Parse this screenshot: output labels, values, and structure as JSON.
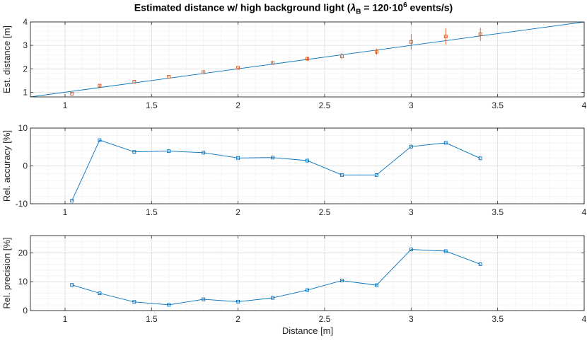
{
  "figure": {
    "title_text_before": "Estimated distance w/ high background light (",
    "title_symbol": "λ",
    "title_symbol_sub": "B",
    "title_eq": " = 120·10",
    "title_sup": "6",
    "title_text_after": " events/s)",
    "xlabel": "Distance [m]"
  },
  "colors": {
    "axis": "#262626",
    "grid_major": "#dcdcdc",
    "grid_minor": "#efefef",
    "line_blue": "#0072BD",
    "marker_orange": "#D95319"
  },
  "chart_data": [
    {
      "type": "scatter",
      "name": "estimated-distance",
      "ylabel": "Est. distance [m]",
      "xlim": [
        0.8,
        4
      ],
      "ylim": [
        0.8,
        4
      ],
      "xticks": [
        1,
        1.5,
        2,
        2.5,
        3,
        3.5,
        4
      ],
      "xtick_labels": [
        "1",
        "1.5",
        "2",
        "2.5",
        "3",
        "3.5",
        "4"
      ],
      "yticks": [
        1,
        2,
        3,
        4
      ],
      "ytick_labels": [
        "1",
        "2",
        "3",
        "4"
      ],
      "grid": true,
      "reference_line": {
        "x": [
          0.8,
          4
        ],
        "y": [
          0.8,
          4
        ]
      },
      "series": [
        {
          "x": [
            1.04,
            1.2,
            1.4,
            1.6,
            1.8,
            2.0,
            2.2,
            2.4,
            2.6,
            2.8,
            3.0,
            3.2,
            3.4
          ],
          "y": [
            0.94,
            1.28,
            1.45,
            1.66,
            1.86,
            2.04,
            2.25,
            2.43,
            2.54,
            2.73,
            3.15,
            3.38,
            3.47
          ],
          "err": [
            0.05,
            0.08,
            0.04,
            0.03,
            0.07,
            0.06,
            0.1,
            0.17,
            0.26,
            0.24,
            0.66,
            0.7,
            0.56
          ]
        }
      ]
    },
    {
      "type": "line",
      "name": "relative-accuracy",
      "ylabel": "Rel. accuracy [%]",
      "xlim": [
        0.8,
        4
      ],
      "ylim": [
        -10,
        10
      ],
      "xticks": [
        1,
        1.5,
        2,
        2.5,
        3,
        3.5,
        4
      ],
      "xtick_labels": [
        "1",
        "1.5",
        "2",
        "2.5",
        "3",
        "3.5",
        "4"
      ],
      "yticks": [
        -10,
        0,
        10
      ],
      "ytick_labels": [
        "-10",
        "0",
        "10"
      ],
      "grid": true,
      "series": [
        {
          "x": [
            1.04,
            1.2,
            1.4,
            1.6,
            1.8,
            2.0,
            2.2,
            2.4,
            2.6,
            2.8,
            3.0,
            3.2,
            3.4
          ],
          "y": [
            -9.2,
            6.8,
            3.7,
            3.9,
            3.5,
            2.1,
            2.2,
            1.4,
            -2.4,
            -2.4,
            5.1,
            6.1,
            2.0
          ]
        }
      ]
    },
    {
      "type": "line",
      "name": "relative-precision",
      "ylabel": "Rel. precision [%]",
      "xlim": [
        0.8,
        4
      ],
      "ylim": [
        0,
        26
      ],
      "xticks": [
        1,
        1.5,
        2,
        2.5,
        3,
        3.5,
        4
      ],
      "xtick_labels": [
        "1",
        "1.5",
        "2",
        "2.5",
        "3",
        "3.5",
        "4"
      ],
      "yticks": [
        0,
        10,
        20
      ],
      "ytick_labels": [
        "0",
        "10",
        "20"
      ],
      "grid": true,
      "series": [
        {
          "x": [
            1.04,
            1.2,
            1.4,
            1.6,
            1.8,
            2.0,
            2.2,
            2.4,
            2.6,
            2.8,
            3.0,
            3.2,
            3.4
          ],
          "y": [
            8.9,
            6.0,
            3.0,
            2.0,
            3.9,
            3.1,
            4.4,
            7.1,
            10.4,
            8.8,
            21.2,
            20.6,
            16.1
          ]
        }
      ]
    }
  ]
}
